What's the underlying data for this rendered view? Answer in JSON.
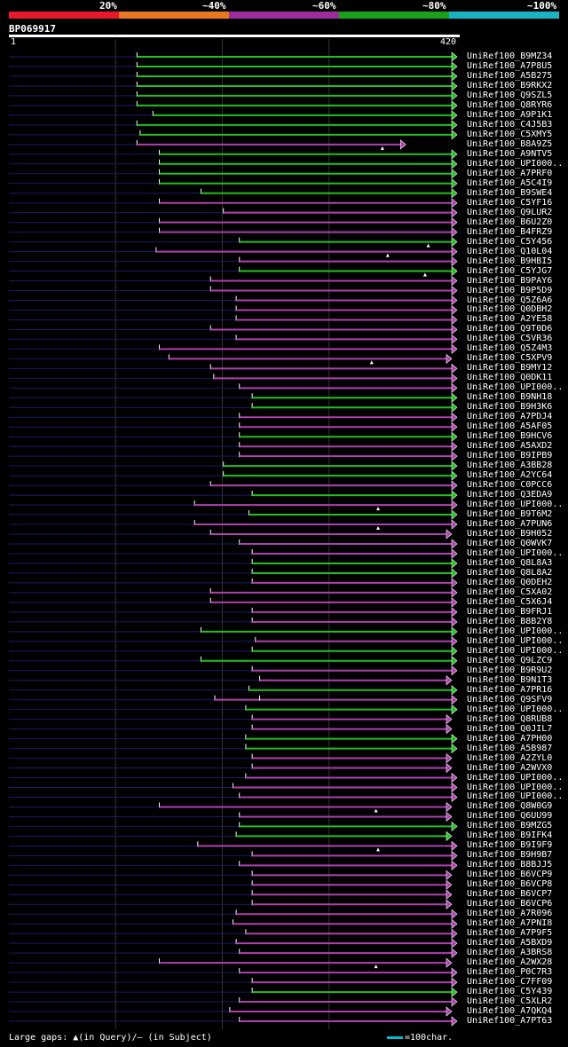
{
  "legend": [
    {
      "label": "20%",
      "color": "#e8192c"
    },
    {
      "label": "~40%",
      "color": "#e87722"
    },
    {
      "label": "~60%",
      "color": "#9b2d9b"
    },
    {
      "label": "~80%",
      "color": "#1aa01a"
    },
    {
      "label": "~100%",
      "color": "#18b4c4"
    }
  ],
  "query": {
    "id": "BP069917",
    "start": "1",
    "end": "420",
    "length": 420
  },
  "footer": {
    "gap_text": "Large gaps: ▲(in Query)/– (in Subject)",
    "scale_text": "=100char."
  },
  "colors": {
    "green": "#22c020",
    "purple": "#b040b0",
    "navy": "#1a1a6a",
    "grid": "#333"
  },
  "hits": [
    {
      "name": "UniRef100_B9MZ34",
      "s": 120,
      "e": 420,
      "c": "green"
    },
    {
      "name": "UniRef100_A7P8U5",
      "s": 120,
      "e": 420,
      "c": "green"
    },
    {
      "name": "UniRef100_A5B275",
      "s": 120,
      "e": 420,
      "c": "green"
    },
    {
      "name": "UniRef100_B9RKX2",
      "s": 120,
      "e": 420,
      "c": "green"
    },
    {
      "name": "UniRef100_Q9SZL5",
      "s": 120,
      "e": 420,
      "c": "green"
    },
    {
      "name": "UniRef100_Q8RYR6",
      "s": 120,
      "e": 420,
      "c": "green"
    },
    {
      "name": "UniRef100_A9P1K1",
      "s": 135,
      "e": 420,
      "c": "green"
    },
    {
      "name": "UniRef100_C4J5B3",
      "s": 120,
      "e": 420,
      "c": "green"
    },
    {
      "name": "UniRef100_C5XMY5",
      "s": 123,
      "e": 420,
      "c": "green"
    },
    {
      "name": "UniRef100_B8A9Z5",
      "s": 120,
      "e": 372,
      "c": "purple",
      "gap": 350
    },
    {
      "name": "UniRef100_A9NTV5",
      "s": 141,
      "e": 420,
      "c": "green"
    },
    {
      "name": "UniRef100_UPI000..",
      "s": 141,
      "e": 420,
      "c": "green"
    },
    {
      "name": "UniRef100_A7PRF0",
      "s": 141,
      "e": 420,
      "c": "green"
    },
    {
      "name": "UniRef100_A5C4I9",
      "s": 141,
      "e": 420,
      "c": "green"
    },
    {
      "name": "UniRef100_B9SWE4",
      "s": 180,
      "e": 420,
      "c": "green"
    },
    {
      "name": "UniRef100_C5YF16",
      "s": 141,
      "e": 420,
      "c": "purple"
    },
    {
      "name": "UniRef100_Q9LUR2",
      "s": 201,
      "e": 420,
      "c": "purple"
    },
    {
      "name": "UniRef100_B6U2Z0",
      "s": 141,
      "e": 420,
      "c": "purple"
    },
    {
      "name": "UniRef100_B4FRZ9",
      "s": 141,
      "e": 420,
      "c": "purple"
    },
    {
      "name": "UniRef100_C5Y456",
      "s": 216,
      "e": 420,
      "c": "green",
      "gap": 393
    },
    {
      "name": "UniRef100_Q10L04",
      "s": 138,
      "e": 420,
      "c": "purple",
      "gap": 355
    },
    {
      "name": "UniRef100_B9HBI5",
      "s": 216,
      "e": 420,
      "c": "purple"
    },
    {
      "name": "UniRef100_C5YJG7",
      "s": 216,
      "e": 420,
      "c": "green",
      "gap": 390
    },
    {
      "name": "UniRef100_B9PAY6",
      "s": 189,
      "e": 420,
      "c": "purple"
    },
    {
      "name": "UniRef100_B9P5D9",
      "s": 189,
      "e": 420,
      "c": "purple"
    },
    {
      "name": "UniRef100_Q5Z6A6",
      "s": 213,
      "e": 420,
      "c": "purple"
    },
    {
      "name": "UniRef100_Q0DBH2",
      "s": 213,
      "e": 420,
      "c": "purple"
    },
    {
      "name": "UniRef100_A2YE58",
      "s": 213,
      "e": 420,
      "c": "purple"
    },
    {
      "name": "UniRef100_Q9T0D6",
      "s": 189,
      "e": 420,
      "c": "purple"
    },
    {
      "name": "UniRef100_C5VR36",
      "s": 213,
      "e": 420,
      "c": "purple"
    },
    {
      "name": "UniRef100_Q5Z4M3",
      "s": 141,
      "e": 420,
      "c": "purple"
    },
    {
      "name": "UniRef100_C5XPV9",
      "s": 150,
      "e": 415,
      "c": "purple",
      "gap": 340
    },
    {
      "name": "UniRef100_B9MY12",
      "s": 189,
      "e": 420,
      "c": "purple"
    },
    {
      "name": "UniRef100_Q0DK11",
      "s": 192,
      "e": 420,
      "c": "purple"
    },
    {
      "name": "UniRef100_UPI000..",
      "s": 216,
      "e": 420,
      "c": "purple"
    },
    {
      "name": "UniRef100_B9NH18",
      "s": 228,
      "e": 420,
      "c": "green"
    },
    {
      "name": "UniRef100_B9H3K6",
      "s": 228,
      "e": 420,
      "c": "green"
    },
    {
      "name": "UniRef100_A7PDJ4",
      "s": 216,
      "e": 420,
      "c": "purple"
    },
    {
      "name": "UniRef100_A5AF05",
      "s": 216,
      "e": 420,
      "c": "purple"
    },
    {
      "name": "UniRef100_B9HCV6",
      "s": 216,
      "e": 420,
      "c": "green"
    },
    {
      "name": "UniRef100_A5AXD2",
      "s": 216,
      "e": 420,
      "c": "purple"
    },
    {
      "name": "UniRef100_B9IPB9",
      "s": 216,
      "e": 420,
      "c": "purple"
    },
    {
      "name": "UniRef100_A3BB28",
      "s": 201,
      "e": 420,
      "c": "green"
    },
    {
      "name": "UniRef100_A2YC64",
      "s": 201,
      "e": 420,
      "c": "green"
    },
    {
      "name": "UniRef100_C0PCC6",
      "s": 189,
      "e": 420,
      "c": "purple"
    },
    {
      "name": "UniRef100_Q3EDA9",
      "s": 228,
      "e": 420,
      "c": "green"
    },
    {
      "name": "UniRef100_UPI000..",
      "s": 174,
      "e": 420,
      "c": "purple",
      "gap": 346
    },
    {
      "name": "UniRef100_B9T6M2",
      "s": 225,
      "e": 420,
      "c": "green"
    },
    {
      "name": "UniRef100_A7PUN6",
      "s": 174,
      "e": 420,
      "c": "purple",
      "gap": 346
    },
    {
      "name": "UniRef100_B9H052",
      "s": 189,
      "e": 415,
      "c": "purple"
    },
    {
      "name": "UniRef100_Q0WVK7",
      "s": 216,
      "e": 420,
      "c": "purple"
    },
    {
      "name": "UniRef100_UPI000..",
      "s": 228,
      "e": 420,
      "c": "purple"
    },
    {
      "name": "UniRef100_Q8L8A3",
      "s": 228,
      "e": 420,
      "c": "green"
    },
    {
      "name": "UniRef100_Q8L8A2",
      "s": 228,
      "e": 420,
      "c": "green"
    },
    {
      "name": "UniRef100_Q0DEH2",
      "s": 228,
      "e": 420,
      "c": "purple"
    },
    {
      "name": "UniRef100_C5XA02",
      "s": 189,
      "e": 420,
      "c": "purple"
    },
    {
      "name": "UniRef100_C5X6J4",
      "s": 189,
      "e": 420,
      "c": "purple"
    },
    {
      "name": "UniRef100_B9FRJ1",
      "s": 228,
      "e": 420,
      "c": "purple"
    },
    {
      "name": "UniRef100_B8B2Y8",
      "s": 228,
      "e": 420,
      "c": "purple"
    },
    {
      "name": "UniRef100_UPI000..",
      "s": 180,
      "e": 420,
      "c": "green"
    },
    {
      "name": "UniRef100_UPI000..",
      "s": 231,
      "e": 420,
      "c": "purple"
    },
    {
      "name": "UniRef100_UPI000..",
      "s": 228,
      "e": 420,
      "c": "green"
    },
    {
      "name": "UniRef100_Q9LZC9",
      "s": 180,
      "e": 420,
      "c": "green"
    },
    {
      "name": "UniRef100_B9R9U2",
      "s": 228,
      "e": 420,
      "c": "purple"
    },
    {
      "name": "UniRef100_B9N1T3",
      "s": 235,
      "e": 415,
      "c": "purple"
    },
    {
      "name": "UniRef100_A7PR16",
      "s": 225,
      "e": 420,
      "c": "green"
    },
    {
      "name": "UniRef100_Q9SFV9",
      "s": 193,
      "e": 420,
      "c": "purple",
      "tick": 235
    },
    {
      "name": "UniRef100_UPI000..",
      "s": 222,
      "e": 420,
      "c": "green"
    },
    {
      "name": "UniRef100_Q8RUB8",
      "s": 228,
      "e": 415,
      "c": "purple"
    },
    {
      "name": "UniRef100_Q0JIL7",
      "s": 228,
      "e": 415,
      "c": "purple"
    },
    {
      "name": "UniRef100_A7PH00",
      "s": 222,
      "e": 420,
      "c": "green"
    },
    {
      "name": "UniRef100_A5B987",
      "s": 222,
      "e": 420,
      "c": "green"
    },
    {
      "name": "UniRef100_A2ZYL0",
      "s": 228,
      "e": 415,
      "c": "purple"
    },
    {
      "name": "UniRef100_A2WVX0",
      "s": 228,
      "e": 415,
      "c": "purple"
    },
    {
      "name": "UniRef100_UPI000..",
      "s": 222,
      "e": 420,
      "c": "purple"
    },
    {
      "name": "UniRef100_UPI000..",
      "s": 210,
      "e": 420,
      "c": "purple"
    },
    {
      "name": "UniRef100_UPI000..",
      "s": 216,
      "e": 420,
      "c": "purple"
    },
    {
      "name": "UniRef100_Q8W0G9",
      "s": 141,
      "e": 415,
      "c": "purple",
      "gap": 344
    },
    {
      "name": "UniRef100_Q6UU99",
      "s": 216,
      "e": 415,
      "c": "purple"
    },
    {
      "name": "UniRef100_B9MZG5",
      "s": 216,
      "e": 420,
      "c": "green"
    },
    {
      "name": "UniRef100_B9IFK4",
      "s": 213,
      "e": 415,
      "c": "green"
    },
    {
      "name": "UniRef100_B9I9F9",
      "s": 177,
      "e": 420,
      "c": "purple",
      "gap": 346
    },
    {
      "name": "UniRef100_B9H9B7",
      "s": 228,
      "e": 420,
      "c": "purple"
    },
    {
      "name": "UniRef100_B8BJJ5",
      "s": 216,
      "e": 420,
      "c": "purple"
    },
    {
      "name": "UniRef100_B6VCP9",
      "s": 228,
      "e": 415,
      "c": "purple"
    },
    {
      "name": "UniRef100_B6VCP8",
      "s": 228,
      "e": 415,
      "c": "purple"
    },
    {
      "name": "UniRef100_B6VCP7",
      "s": 228,
      "e": 415,
      "c": "purple"
    },
    {
      "name": "UniRef100_B6VCP6",
      "s": 228,
      "e": 415,
      "c": "purple"
    },
    {
      "name": "UniRef100_A7R096",
      "s": 213,
      "e": 420,
      "c": "purple"
    },
    {
      "name": "UniRef100_A7PNI8",
      "s": 210,
      "e": 420,
      "c": "purple"
    },
    {
      "name": "UniRef100_A7P9F5",
      "s": 222,
      "e": 420,
      "c": "purple"
    },
    {
      "name": "UniRef100_A5BXD9",
      "s": 213,
      "e": 420,
      "c": "purple"
    },
    {
      "name": "UniRef100_A3BRS8",
      "s": 216,
      "e": 420,
      "c": "purple"
    },
    {
      "name": "UniRef100_A2WX28",
      "s": 141,
      "e": 415,
      "c": "purple",
      "gap": 344
    },
    {
      "name": "UniRef100_P0C7R3",
      "s": 216,
      "e": 420,
      "c": "purple"
    },
    {
      "name": "UniRef100_C7FF09",
      "s": 228,
      "e": 420,
      "c": "purple"
    },
    {
      "name": "UniRef100_C5Y439",
      "s": 228,
      "e": 420,
      "c": "green"
    },
    {
      "name": "UniRef100_C5XLR2",
      "s": 216,
      "e": 420,
      "c": "purple"
    },
    {
      "name": "UniRef100_A7QKQ4",
      "s": 207,
      "e": 415,
      "c": "purple"
    },
    {
      "name": "UniRef100_A7PT63",
      "s": 216,
      "e": 420,
      "c": "purple"
    }
  ]
}
